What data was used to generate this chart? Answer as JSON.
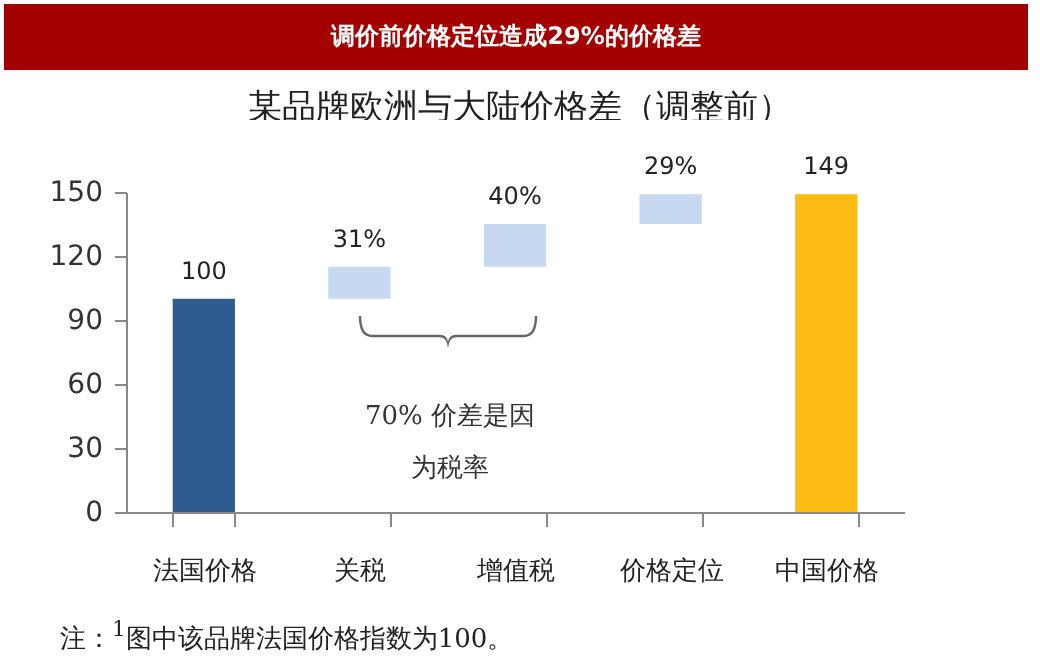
{
  "chart_data": {
    "type": "bar",
    "title": "调价前价格定位造成29%的价格差",
    "subtitle": "某品牌欧洲与大陆价格差（调整前）",
    "categories": [
      "法国价格",
      "关税",
      "增值税",
      "价格定位",
      "中国价格"
    ],
    "values": [
      100,
      15,
      20,
      14,
      149
    ],
    "base": [
      0,
      100,
      115,
      135,
      0
    ],
    "colors": [
      "#2f5b8e",
      "#c6d9f0",
      "#c6d9f0",
      "#c6d9f0",
      "#fdba12"
    ],
    "value_labels": [
      "100",
      null,
      null,
      null,
      "149"
    ],
    "ylim": [
      0,
      150
    ],
    "yticks": [
      0,
      30,
      60,
      90,
      120,
      150
    ],
    "grid": false,
    "legend": false,
    "annotations": [
      "70% 价差是因为税率",
      "注：$^{1}$图中该品牌法国价格指数为100。",
      {
        "text": "31%",
        "x": "关税",
        "y": 115
      },
      {
        "text": "40%",
        "x": "增值税",
        "y": 135
      },
      {
        "text": "29%",
        "x": "价格定位",
        "y": 149
      }
    ]
  }
}
